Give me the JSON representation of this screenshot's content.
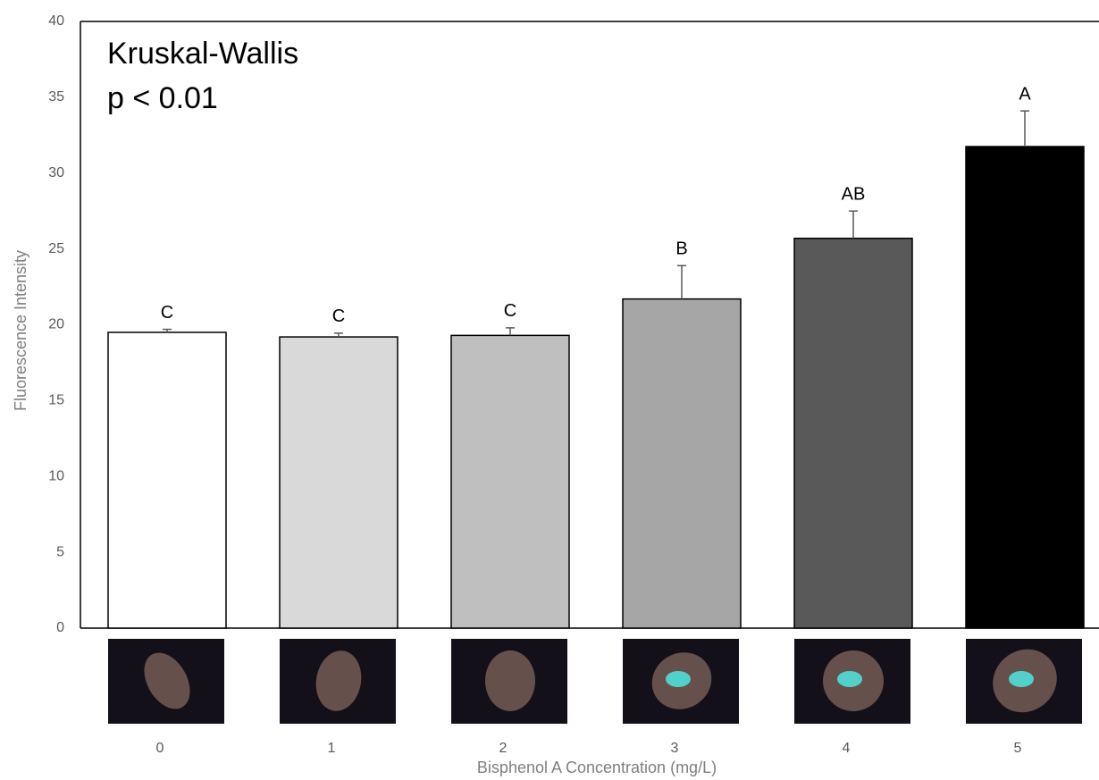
{
  "chart_data": {
    "type": "bar",
    "annotations": [
      "Kruskal-Wallis",
      "p < 0.01"
    ],
    "x_label": "Bisphenol A Concentration (mg/L)",
    "y_label": "Fluorescence Intensity",
    "categories": [
      "0",
      "1",
      "2",
      "3",
      "4",
      "5"
    ],
    "values": [
      19.5,
      19.2,
      19.3,
      21.7,
      25.7,
      31.75
    ],
    "errors": [
      0.2,
      0.25,
      0.5,
      2.2,
      1.8,
      2.35
    ],
    "letters": [
      "C",
      "C",
      "C",
      "B",
      "AB",
      "A"
    ],
    "colors": [
      "#ffffff",
      "#d9d9d9",
      "#bfbfbf",
      "#a6a6a6",
      "#595959",
      "#000000"
    ],
    "ylim": [
      0,
      40
    ],
    "yticks": [
      0,
      5,
      10,
      15,
      20,
      25,
      30,
      35,
      40
    ],
    "grid": false
  }
}
